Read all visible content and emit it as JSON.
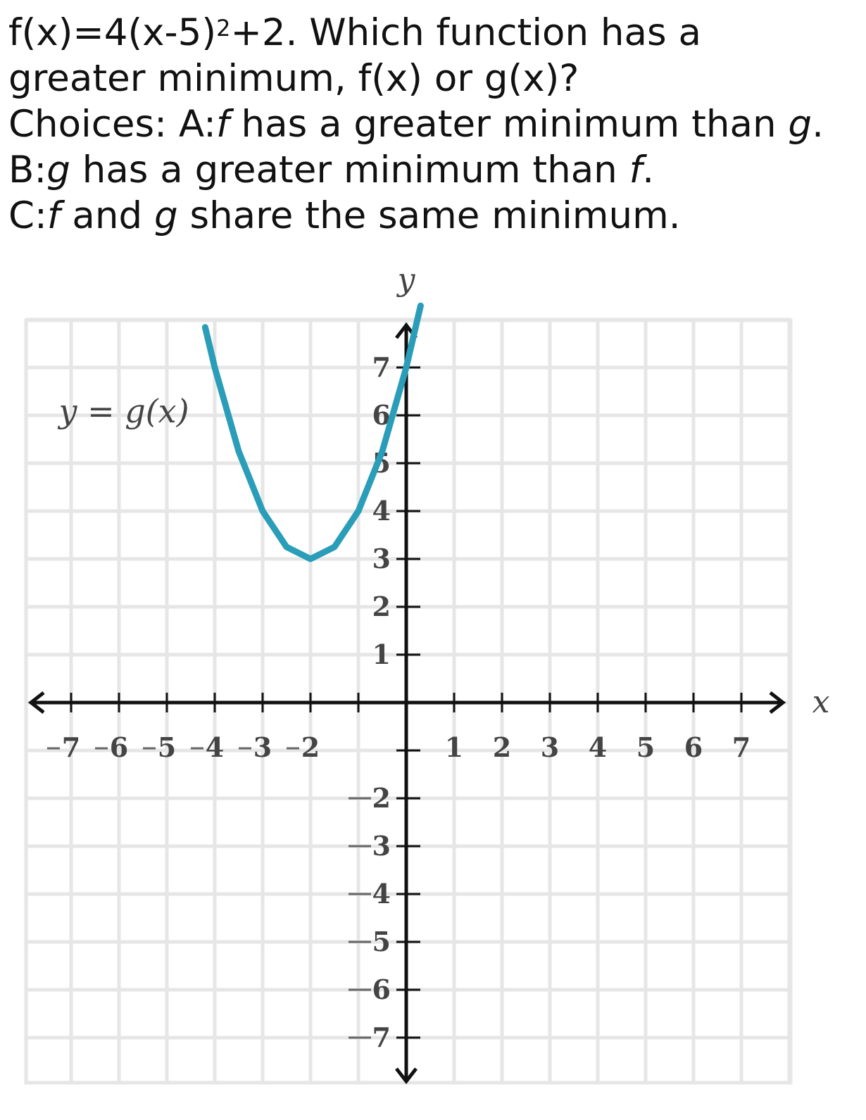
{
  "question": {
    "equation_prefix": "f(x)=4(x-5)",
    "equation_exponent": "2",
    "equation_suffix": "+2. Which function has a",
    "line2": "greater minimum, f(x) or g(x)?",
    "choices_label": "Choices: A:",
    "choice_a_f": "f",
    "choice_a_mid": " has a greater minimum than ",
    "choice_a_g": "g",
    "choice_a_end": ".",
    "choice_b_label": "B:",
    "choice_b_g": "g",
    "choice_b_mid": " has a greater minimum than ",
    "choice_b_f": "f",
    "choice_b_end": ".",
    "choice_c_label": "C:",
    "choice_c_f": "f",
    "choice_c_mid": " and ",
    "choice_c_g": "g",
    "choice_c_end": " share the same minimum."
  },
  "chart_data": {
    "type": "line",
    "xlabel": "x",
    "ylabel": "y",
    "xlim": [
      -8,
      8
    ],
    "ylim": [
      -8,
      8
    ],
    "grid": true,
    "x_ticks": [
      -7,
      -6,
      -5,
      -4,
      -3,
      -2,
      1,
      2,
      3,
      4,
      5,
      6,
      7
    ],
    "y_ticks": [
      7,
      6,
      5,
      4,
      3,
      2,
      1,
      -2,
      -3,
      -4,
      -5,
      -6,
      -7
    ],
    "series": [
      {
        "name": "y = g(x)",
        "function": "(x+2)^2+3",
        "vertex": [
          -2,
          3
        ],
        "x": [
          -4.2,
          -4,
          -3.5,
          -3,
          -2.5,
          -2,
          -1.5,
          -1,
          -0.5,
          0,
          0.3
        ],
        "y": [
          7.84,
          7,
          5.25,
          4,
          3.25,
          3,
          3.25,
          4,
          5.25,
          7,
          8.29
        ]
      }
    ],
    "colors": {
      "curve": "#2a9db8",
      "axis": "#111111",
      "grid": "#e6e6e6"
    }
  }
}
